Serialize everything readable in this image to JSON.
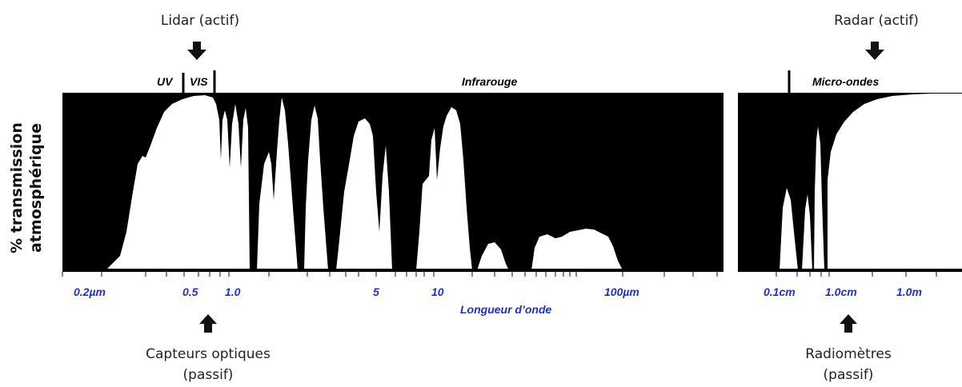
{
  "annotations": {
    "lidar": "Lidar (actif)",
    "radar": "Radar (actif)",
    "optical_line1": "Capteurs optiques",
    "optical_line2": "(passif)",
    "radiometer_line1": "Radiomètres",
    "radiometer_line2": "(passif)"
  },
  "bands": {
    "uv": "UV",
    "vis": "VIS",
    "ir": "Infrarouge",
    "microwave": "Micro-ondes"
  },
  "y_axis": {
    "line1": "% transmission",
    "line2": "atmosphérique"
  },
  "x_axis": {
    "title": "Longueur d’onde",
    "ticks_left": [
      "0.2µm",
      "0.5",
      "1.0",
      "5",
      "10",
      "100µm"
    ],
    "ticks_right": [
      "0.1cm",
      "1.0cm",
      "1.0m"
    ]
  },
  "colors": {
    "panel": "#000000",
    "window": "#ffffff",
    "tick_text": "#1f2fd6",
    "arrow": "#111111"
  },
  "chart_data": {
    "type": "area",
    "ylabel": "% transmission atmosphérique",
    "xlabel": "Longueur d’onde"
  }
}
